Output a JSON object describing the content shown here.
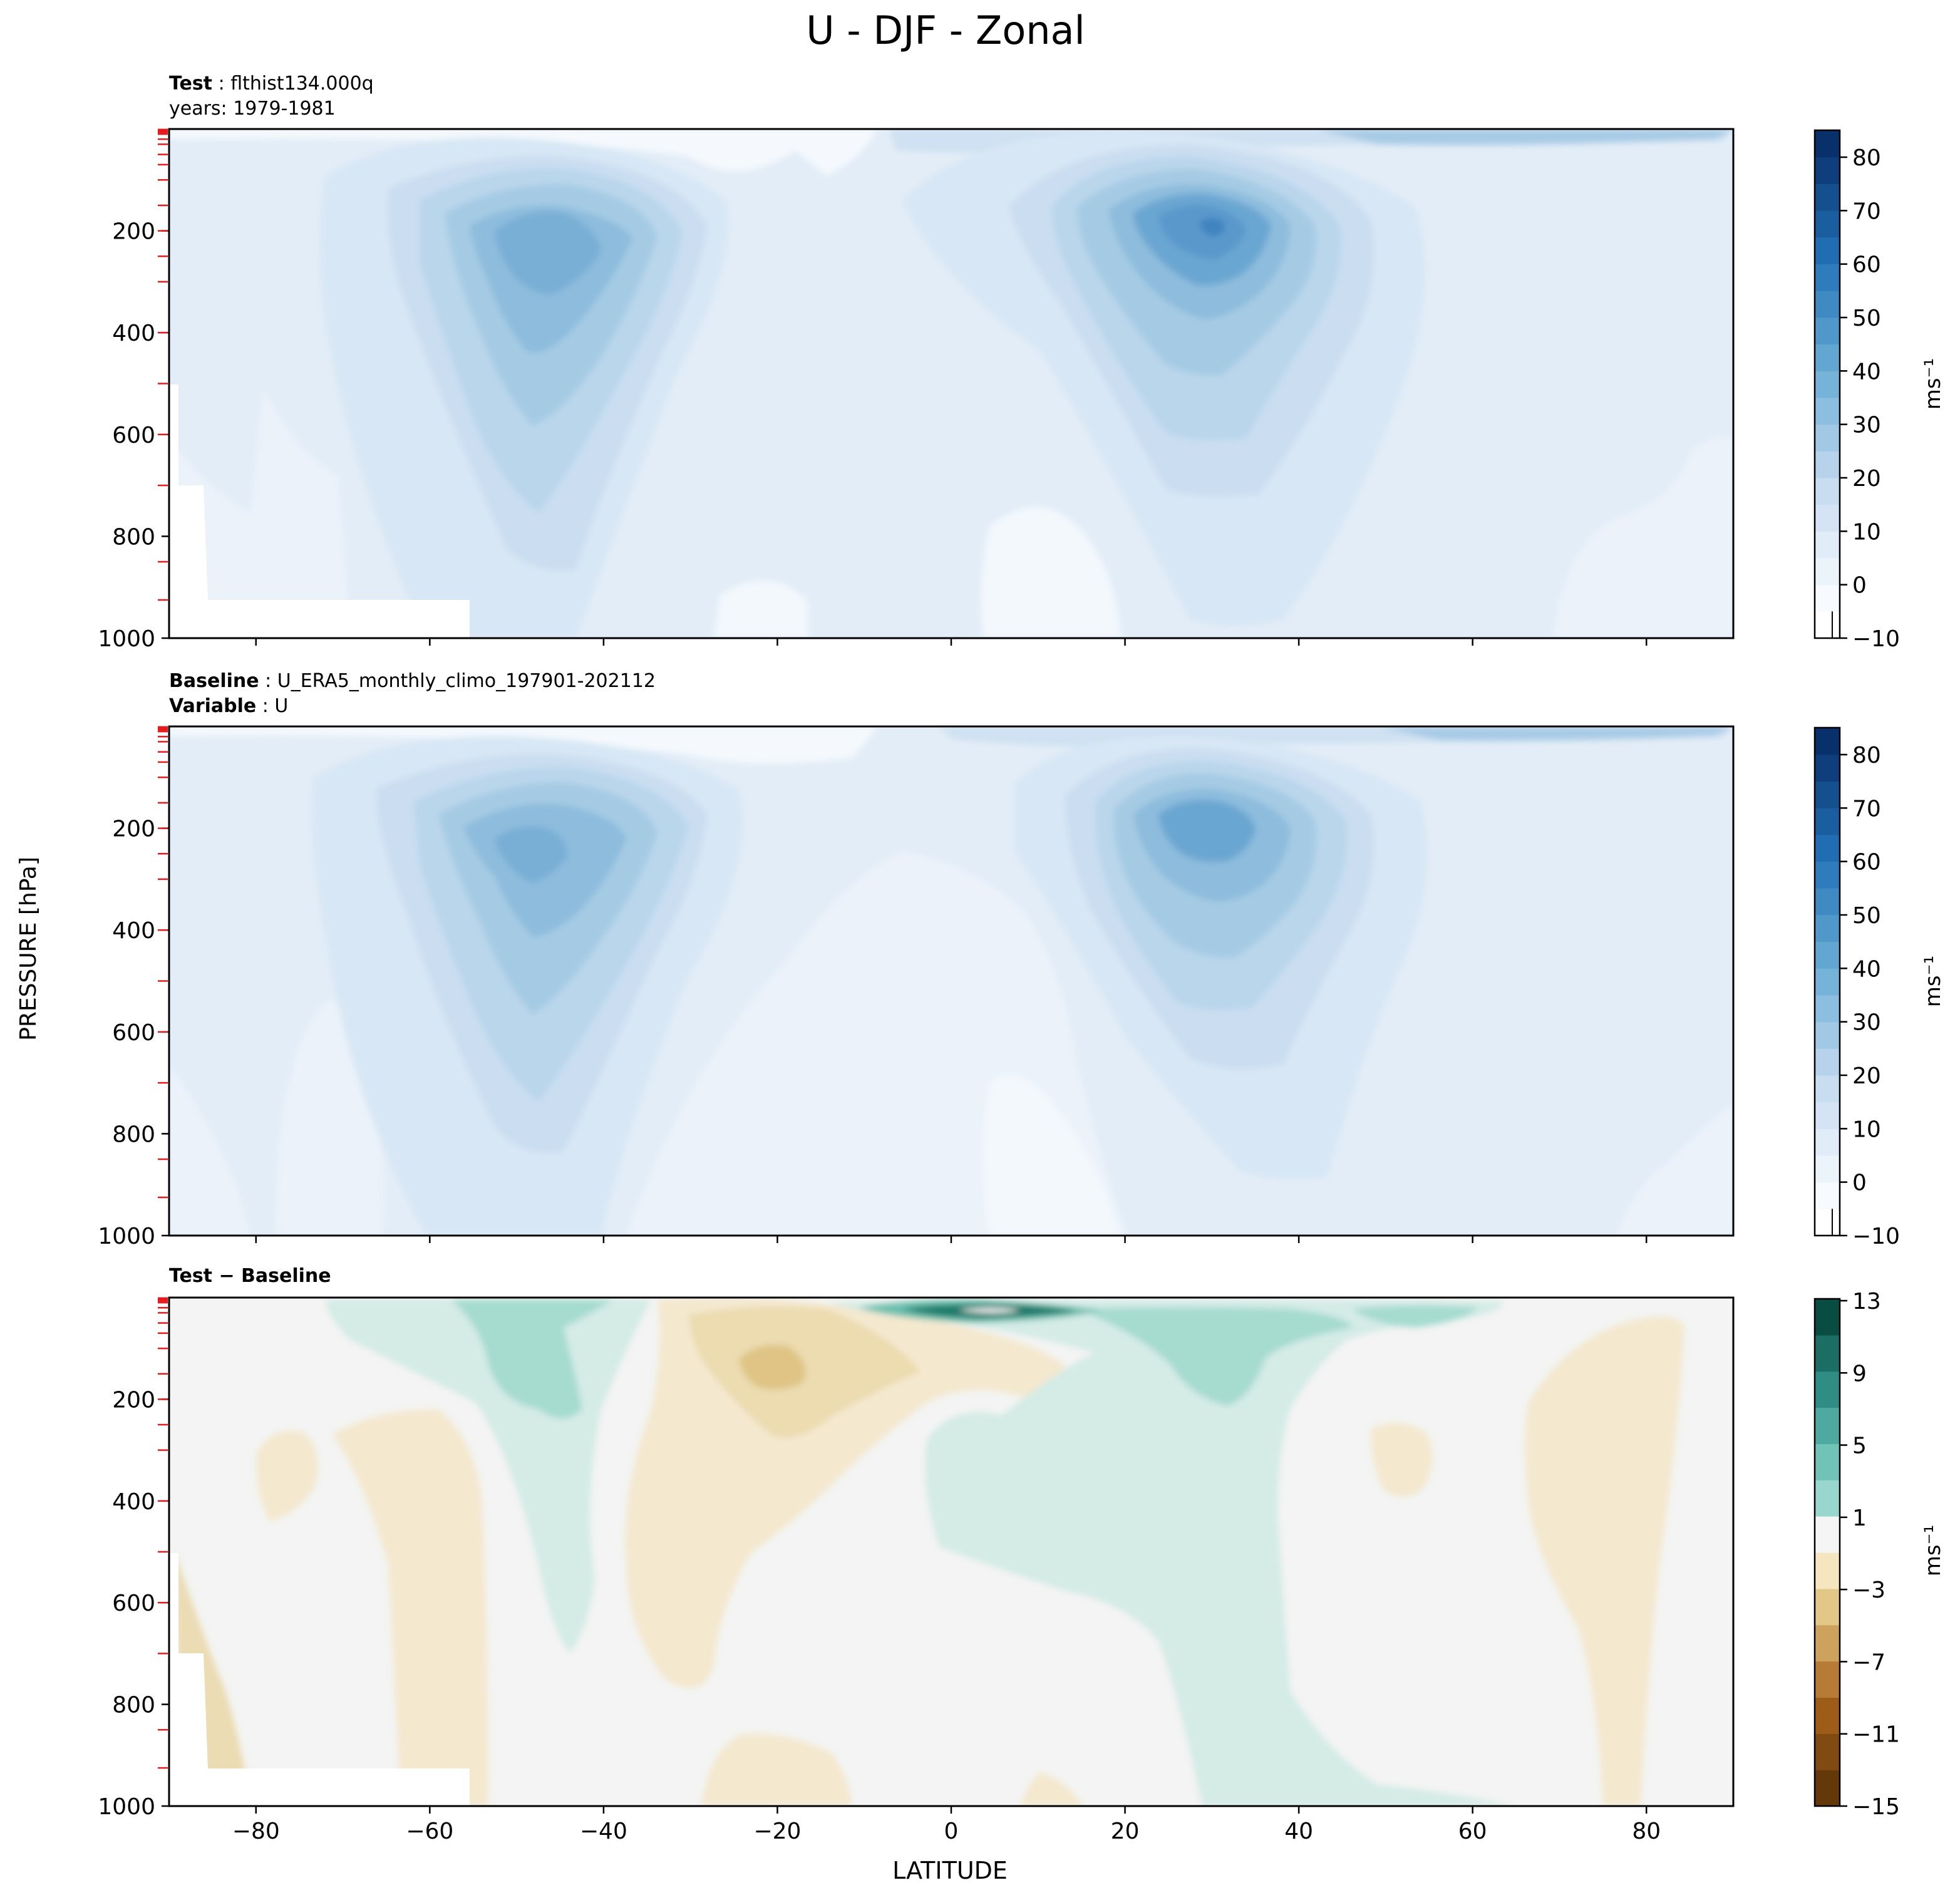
{
  "figure": {
    "title": "U - DJF - Zonal",
    "ylabel": "PRESSURE [hPa]",
    "xlabel": "LATITUDE"
  },
  "panels": [
    {
      "id": "test",
      "header": [
        [
          {
            "text": "Test",
            "bold": true
          },
          {
            "text": " : flthist134.000q",
            "bold": false
          }
        ],
        [
          {
            "text": "years: 1979-1981",
            "bold": false
          }
        ]
      ],
      "colorbar_label": "ms⁻¹",
      "colorbar_ticks": [
        "80",
        "70",
        "60",
        "50",
        "40",
        "30",
        "20",
        "10",
        "0",
        "−10"
      ]
    },
    {
      "id": "baseline",
      "header": [
        [
          {
            "text": "Baseline",
            "bold": true
          },
          {
            "text": " : U_ERA5_monthly_climo_197901-202112",
            "bold": false
          }
        ],
        [
          {
            "text": "Variable",
            "bold": true
          },
          {
            "text": " : U",
            "bold": false
          }
        ]
      ],
      "colorbar_label": "ms⁻¹",
      "colorbar_ticks": [
        "80",
        "70",
        "60",
        "50",
        "40",
        "30",
        "20",
        "10",
        "0",
        "−10"
      ]
    },
    {
      "id": "diff",
      "header": [
        [
          {
            "text": "Test − Baseline",
            "bold": true
          }
        ]
      ],
      "colorbar_label": "ms⁻¹",
      "colorbar_ticks": [
        "13",
        "9",
        "5",
        "1",
        "−3",
        "−7",
        "−11",
        "−15"
      ]
    }
  ],
  "chart_data": [
    {
      "type": "heatmap",
      "name": "Test",
      "x_ticks": [
        -80,
        -60,
        -40,
        -20,
        0,
        20,
        40,
        60,
        80
      ],
      "x_range": [
        -90,
        90
      ],
      "y_ticks": [
        200,
        400,
        600,
        800,
        1000
      ],
      "y_range": [
        0,
        1000
      ],
      "y_inverted": true,
      "colormap": "Blues",
      "colorbar_levels": [
        -10,
        -5,
        0,
        5,
        10,
        15,
        20,
        25,
        30,
        35,
        40,
        45,
        50,
        55,
        60,
        65,
        70,
        75,
        80,
        85
      ],
      "jets": [
        {
          "lat": -46,
          "pressure_hPa": 250,
          "max_ms": 37
        },
        {
          "lat": 31,
          "pressure_hPa": 200,
          "max_ms": 47
        }
      ],
      "extra_maxima": [
        {
          "lat": 68,
          "pressure_hPa": 10,
          "max_ms": 30
        }
      ]
    },
    {
      "type": "heatmap",
      "name": "Baseline",
      "x_ticks": [
        -80,
        -60,
        -40,
        -20,
        0,
        20,
        40,
        60,
        80
      ],
      "x_range": [
        -90,
        90
      ],
      "y_ticks": [
        200,
        400,
        600,
        800,
        1000
      ],
      "y_range": [
        0,
        1000
      ],
      "y_inverted": true,
      "colormap": "Blues",
      "colorbar_levels": [
        -10,
        -5,
        0,
        5,
        10,
        15,
        20,
        25,
        30,
        35,
        40,
        45,
        50,
        55,
        60,
        65,
        70,
        75,
        80,
        85
      ],
      "jets": [
        {
          "lat": -47,
          "pressure_hPa": 240,
          "max_ms": 35
        },
        {
          "lat": 31,
          "pressure_hPa": 200,
          "max_ms": 43
        }
      ],
      "extra_maxima": [
        {
          "lat": 68,
          "pressure_hPa": 10,
          "max_ms": 30
        }
      ]
    },
    {
      "type": "heatmap",
      "name": "Test − Baseline",
      "x_ticks": [
        -80,
        -60,
        -40,
        -20,
        0,
        20,
        40,
        60,
        80
      ],
      "x_range": [
        -90,
        90
      ],
      "y_ticks": [
        200,
        400,
        600,
        800,
        1000
      ],
      "y_range": [
        0,
        1000
      ],
      "y_inverted": true,
      "colormap": "BrBG",
      "colorbar_levels": [
        -15,
        -13,
        -11,
        -9,
        -7,
        -5,
        -3,
        -1,
        1,
        3,
        5,
        7,
        9,
        11,
        13
      ],
      "features": [
        {
          "lat": 5,
          "pressure_hPa": 25,
          "diff_ms": 13
        },
        {
          "lat": -45,
          "pressure_hPa": 160,
          "diff_ms": 5
        },
        {
          "lat": 35,
          "pressure_hPa": 160,
          "diff_ms": 5
        },
        {
          "lat": -22,
          "pressure_hPa": 160,
          "diff_ms": -5
        },
        {
          "lat": 28,
          "pressure_hPa": 550,
          "diff_ms": 2
        }
      ]
    }
  ]
}
